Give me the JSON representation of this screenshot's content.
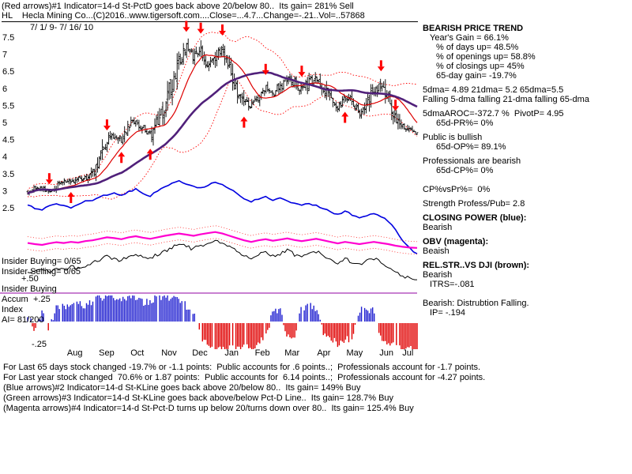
{
  "header": {
    "line1": "(Red arrows)#1 Indicator=14-d St-PctD goes back above 20/below 80..  Its gain= 281% Sell",
    "line2": "HL    Hecla Mining Co...(C)2016..www.tigersoft.com....Close=...4.7...Change=-.21..Vol=..57868",
    "date_range": "7/ 1/ 9- 7/ 16/ 10"
  },
  "left_labels": {
    "insider_buying": "Insider Buying= 0/65",
    "insider_selling": "Insider Selling= 0/65",
    "plus50": "+.50",
    "accum_line1": "Insider Buying",
    "accum_line2": "Accum",
    "plus25": "+.25",
    "accum_line3": "Index",
    "ai_ratio": "AI= 81/200",
    "minus25": "-.25"
  },
  "right_panel": {
    "lines": [
      {
        "t": "BEARISH PRICE TREND",
        "b": 1,
        "ind": 0,
        "sp": 0
      },
      {
        "t": "Year's Gain = 66.1%",
        "b": 0,
        "ind": 1,
        "sp": 0
      },
      {
        "t": "% of days up= 48.5%",
        "b": 0,
        "ind": 2,
        "sp": 0
      },
      {
        "t": "% of openings up= 58.8%",
        "b": 0,
        "ind": 2,
        "sp": 0
      },
      {
        "t": "% of closings up= 45%",
        "b": 0,
        "ind": 2,
        "sp": 0
      },
      {
        "t": "65-day gain= -19.7%",
        "b": 0,
        "ind": 2,
        "sp": 0
      },
      {
        "t": "5dma= 4.89 21dma= 5.2 65dma=5.5",
        "b": 0,
        "ind": 0,
        "sp": 6
      },
      {
        "t": "Falling 5-dma falling 21-dma falling 65-dma",
        "b": 0,
        "ind": 0,
        "sp": 0
      },
      {
        "t": "5dmaAROC=-372.7 %  PivotP= 4.95",
        "b": 0,
        "ind": 0,
        "sp": 6
      },
      {
        "t": "65d-PR%= 0%",
        "b": 0,
        "ind": 2,
        "sp": 0
      },
      {
        "t": "Public is bullish",
        "b": 0,
        "ind": 0,
        "sp": 6
      },
      {
        "t": "65d-OP%= 89.1%",
        "b": 0,
        "ind": 2,
        "sp": 0
      },
      {
        "t": "Professionals are bearish",
        "b": 0,
        "ind": 0,
        "sp": 6
      },
      {
        "t": "65d-CP%= 0%",
        "b": 0,
        "ind": 2,
        "sp": 0
      },
      {
        "t": "CP%vsPr%=  0%",
        "b": 0,
        "ind": 0,
        "sp": 12
      },
      {
        "t": "Strength Profess/Pub= 2.8",
        "b": 0,
        "ind": 0,
        "sp": 6
      },
      {
        "t": "CLOSING POWER (blue):",
        "b": 1,
        "ind": 0,
        "sp": 6
      },
      {
        "t": "Bearish",
        "b": 0,
        "ind": 0,
        "sp": 0
      },
      {
        "t": "OBV (magenta):",
        "b": 1,
        "ind": 0,
        "sp": 6
      },
      {
        "t": "Beaish",
        "b": 0,
        "ind": 0,
        "sp": 0
      },
      {
        "t": "REL.STR..VS DJI (brown):",
        "b": 1,
        "ind": 0,
        "sp": 6
      },
      {
        "t": "Bearish",
        "b": 0,
        "ind": 0,
        "sp": 0
      },
      {
        "t": "ITRS=-.081",
        "b": 0,
        "ind": 1,
        "sp": 0
      },
      {
        "t": "Bearish: Distrubtion Falling.",
        "b": 0,
        "ind": 0,
        "sp": 12
      },
      {
        "t": "IP= -.194",
        "b": 0,
        "ind": 1,
        "sp": 0
      }
    ]
  },
  "footer": {
    "lines": [
      "For Last 65 days stock changed -19.7% or -1.1 points:  Public accounts for .6 points..;  Professionals account for -1.7 points.",
      "For Last year stock changed  70.6% or 1.87 points:  Public accounts for  6.14 points..;  Professionals account for -4.27 points.",
      "(Blue arrows)#2 Indicator=14-d St-KLine goes back above 20/below 80..  Its gain= 149% Buy",
      "(Green arrows)#3 Indicator=14-d St-KLine goes back above/below Pct-D Line..  Its gain= 128.7% Buy",
      "(Magenta arrows)#4 Indicator=14-d St-Pct-D turns up below 20/turns down over 80..  Its gain= 125.4% Buy"
    ]
  },
  "chart_data": {
    "type": "candlestick",
    "title": "HL Hecla Mining Co.",
    "period": "7/ 1/ 9- 7/ 16/ 10",
    "close": 4.7,
    "change": -0.21,
    "volume": 57868,
    "price_ticks": [
      7.5,
      7,
      6.5,
      6,
      5.5,
      5,
      4.5,
      4,
      3.5,
      3,
      2.5
    ],
    "months": [
      "Aug",
      "Sep",
      "Oct",
      "Nov",
      "Dec",
      "Jan",
      "Feb",
      "Mar",
      "Apr",
      "May",
      "Jun",
      "Jul"
    ],
    "month_mid_days": [
      46,
      77,
      107,
      138,
      168,
      199,
      229,
      258,
      289,
      319,
      350,
      371
    ],
    "total_days": 380,
    "weekly_close": [
      2.95,
      3.05,
      3.1,
      2.95,
      3.15,
      3.3,
      3.25,
      3.4,
      3.35,
      3.5,
      3.9,
      4.45,
      4.6,
      4.5,
      4.9,
      5.1,
      4.8,
      4.6,
      5.0,
      5.5,
      6.2,
      6.9,
      7.2,
      6.9,
      7.15,
      6.6,
      6.9,
      7.1,
      6.5,
      6.0,
      5.6,
      5.5,
      5.75,
      6.0,
      5.85,
      6.05,
      6.3,
      6.15,
      5.95,
      6.15,
      6.3,
      6.05,
      5.75,
      5.45,
      5.75,
      5.5,
      5.25,
      5.5,
      5.9,
      6.1,
      5.7,
      5.0,
      4.85,
      4.75,
      4.7
    ],
    "closing_power": [
      0.68,
      0.64,
      0.62,
      0.66,
      0.7,
      0.67,
      0.65,
      0.69,
      0.72,
      0.74,
      0.78,
      0.8,
      0.83,
      0.8,
      0.84,
      0.87,
      0.82,
      0.79,
      0.85,
      0.9,
      0.95,
      0.97,
      0.94,
      0.91,
      0.88,
      0.92,
      0.96,
      0.93,
      0.88,
      0.82,
      0.76,
      0.72,
      0.75,
      0.78,
      0.74,
      0.77,
      0.73,
      0.7,
      0.68,
      0.7,
      0.67,
      0.63,
      0.6,
      0.56,
      0.6,
      0.56,
      0.52,
      0.55,
      0.58,
      0.54,
      0.48,
      0.38,
      0.25,
      0.15,
      0.08
    ],
    "obv": [
      0.55,
      0.52,
      0.5,
      0.54,
      0.57,
      0.55,
      0.58,
      0.56,
      0.6,
      0.62,
      0.66,
      0.7,
      0.68,
      0.65,
      0.7,
      0.73,
      0.69,
      0.66,
      0.7,
      0.74,
      0.77,
      0.8,
      0.77,
      0.74,
      0.78,
      0.81,
      0.84,
      0.8,
      0.74,
      0.68,
      0.62,
      0.58,
      0.62,
      0.65,
      0.61,
      0.64,
      0.67,
      0.63,
      0.6,
      0.63,
      0.66,
      0.62,
      0.58,
      0.54,
      0.58,
      0.55,
      0.52,
      0.55,
      0.58,
      0.55,
      0.52,
      0.48,
      0.45,
      0.43,
      0.42
    ],
    "rel_str": [
      0.25,
      0.22,
      0.28,
      0.24,
      0.3,
      0.27,
      0.33,
      0.3,
      0.36,
      0.4,
      0.46,
      0.52,
      0.48,
      0.44,
      0.52,
      0.58,
      0.52,
      0.48,
      0.56,
      0.62,
      0.68,
      0.74,
      0.7,
      0.66,
      0.72,
      0.78,
      0.84,
      0.78,
      0.7,
      0.6,
      0.52,
      0.46,
      0.54,
      0.6,
      0.52,
      0.58,
      0.64,
      0.56,
      0.5,
      0.56,
      0.62,
      0.54,
      0.46,
      0.4,
      0.48,
      0.42,
      0.36,
      0.42,
      0.48,
      0.4,
      0.32,
      0.24,
      0.16,
      0.1,
      0.06
    ],
    "accum_index": [
      0.2,
      -0.3,
      0.3,
      -0.2,
      0.5,
      0.6,
      0.5,
      0.7,
      0.6,
      0.8,
      0.9,
      1.0,
      0.9,
      0.8,
      1.0,
      0.9,
      0.7,
      0.8,
      0.9,
      1.0,
      0.9,
      0.8,
      0.6,
      0.4,
      -0.5,
      -0.8,
      -1.0,
      -1.0,
      -0.9,
      -1.0,
      -0.9,
      -1.0,
      -0.8,
      -0.5,
      0.4,
      0.5,
      -0.6,
      -0.5,
      0.5,
      0.6,
      0.5,
      -0.4,
      -0.6,
      -0.8,
      -0.7,
      -0.5,
      0.4,
      0.5,
      0.4,
      -0.5,
      -0.8,
      -0.9,
      -1.0,
      -0.9,
      -1.0
    ],
    "arrows_down_weeks": [
      3,
      11,
      22,
      24,
      27,
      33,
      38,
      49,
      51
    ],
    "arrows_up_weeks": [
      6,
      13,
      17,
      30,
      44
    ],
    "colors": {
      "candle": "#000000",
      "band": "#ff0000",
      "ma21": "#dd0000",
      "ma65": "#50207a",
      "closing_power": "#0000e0",
      "obv": "#ff00d0",
      "obv_band": "#ff2222",
      "rel_str": "#000000",
      "accum_up": "#2020d0",
      "accum_down": "#e00000",
      "arrow": "#ff0000",
      "baseline": "#9000a0"
    }
  }
}
